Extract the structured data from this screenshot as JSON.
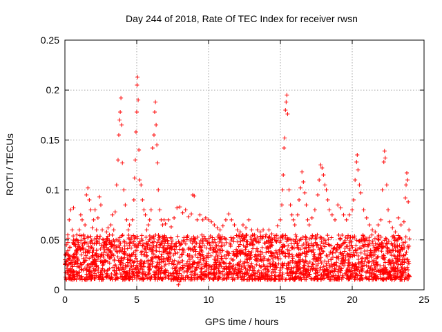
{
  "chart_data": {
    "type": "scatter",
    "title": "Day 244 of 2018, Rate Of TEC Index for receiver rwsn",
    "xlabel": "GPS time / hours",
    "ylabel": "ROTI / TECUs",
    "xlim": [
      0,
      25
    ],
    "ylim": [
      0,
      0.25
    ],
    "xticks": [
      0,
      5,
      10,
      15,
      20,
      25
    ],
    "yticks": [
      0,
      0.05,
      0.1,
      0.15,
      0.2,
      0.25
    ],
    "xtick_labels": [
      "0",
      "5",
      "10",
      "15",
      "20",
      "25"
    ],
    "ytick_labels": [
      "0",
      "0.05",
      "0.1",
      "0.15",
      "0.2",
      "0.25"
    ],
    "grid": true,
    "marker": "+",
    "color": "#ff0000",
    "series": [
      {
        "name": "ROTI",
        "points": [
          [
            0.0,
            0.03
          ],
          [
            0.1,
            0.045
          ],
          [
            0.2,
            0.055
          ],
          [
            0.3,
            0.07
          ],
          [
            0.4,
            0.08
          ],
          [
            0.5,
            0.06
          ],
          [
            0.6,
            0.082
          ],
          [
            0.7,
            0.05
          ],
          [
            0.8,
            0.04
          ],
          [
            0.9,
            0.03
          ],
          [
            1.0,
            0.06
          ],
          [
            1.1,
            0.075
          ],
          [
            1.2,
            0.07
          ],
          [
            1.3,
            0.055
          ],
          [
            1.4,
            0.065
          ],
          [
            1.5,
            0.095
          ],
          [
            1.6,
            0.102
          ],
          [
            1.7,
            0.09
          ],
          [
            1.8,
            0.08
          ],
          [
            1.9,
            0.062
          ],
          [
            2.0,
            0.07
          ],
          [
            2.1,
            0.08
          ],
          [
            2.2,
            0.06
          ],
          [
            2.3,
            0.072
          ],
          [
            2.4,
            0.093
          ],
          [
            2.5,
            0.085
          ],
          [
            2.6,
            0.06
          ],
          [
            2.7,
            0.05
          ],
          [
            2.8,
            0.045
          ],
          [
            2.9,
            0.058
          ],
          [
            3.0,
            0.062
          ],
          [
            3.1,
            0.055
          ],
          [
            3.2,
            0.065
          ],
          [
            3.3,
            0.075
          ],
          [
            3.4,
            0.06
          ],
          [
            3.5,
            0.078
          ],
          [
            3.6,
            0.105
          ],
          [
            3.7,
            0.13
          ],
          [
            3.75,
            0.155
          ],
          [
            3.8,
            0.17
          ],
          [
            3.85,
            0.178
          ],
          [
            3.9,
            0.192
          ],
          [
            3.95,
            0.165
          ],
          [
            4.0,
            0.127
          ],
          [
            4.1,
            0.1
          ],
          [
            4.2,
            0.085
          ],
          [
            4.3,
            0.07
          ],
          [
            4.4,
            0.06
          ],
          [
            4.5,
            0.065
          ],
          [
            4.6,
            0.05
          ],
          [
            4.7,
            0.07
          ],
          [
            4.8,
            0.09
          ],
          [
            4.85,
            0.112
          ],
          [
            4.9,
            0.13
          ],
          [
            4.95,
            0.158
          ],
          [
            5.0,
            0.178
          ],
          [
            5.02,
            0.205
          ],
          [
            5.05,
            0.213
          ],
          [
            5.1,
            0.19
          ],
          [
            5.15,
            0.14
          ],
          [
            5.2,
            0.11
          ],
          [
            5.3,
            0.105
          ],
          [
            5.4,
            0.09
          ],
          [
            5.5,
            0.08
          ],
          [
            5.6,
            0.075
          ],
          [
            5.7,
            0.06
          ],
          [
            5.8,
            0.065
          ],
          [
            5.9,
            0.07
          ],
          [
            6.0,
            0.08
          ],
          [
            6.1,
            0.142
          ],
          [
            6.2,
            0.155
          ],
          [
            6.25,
            0.178
          ],
          [
            6.3,
            0.188
          ],
          [
            6.35,
            0.165
          ],
          [
            6.4,
            0.145
          ],
          [
            6.45,
            0.127
          ],
          [
            6.5,
            0.1
          ],
          [
            6.6,
            0.08
          ],
          [
            6.7,
            0.07
          ],
          [
            6.8,
            0.065
          ],
          [
            6.9,
            0.07
          ],
          [
            7.0,
            0.066
          ],
          [
            7.2,
            0.07
          ],
          [
            7.4,
            0.063
          ],
          [
            7.6,
            0.072
          ],
          [
            7.8,
            0.082
          ],
          [
            8.0,
            0.083
          ],
          [
            8.2,
            0.077
          ],
          [
            8.4,
            0.08
          ],
          [
            8.6,
            0.073
          ],
          [
            8.8,
            0.076
          ],
          [
            8.9,
            0.095
          ],
          [
            9.0,
            0.094
          ],
          [
            9.2,
            0.07
          ],
          [
            9.4,
            0.075
          ],
          [
            9.6,
            0.07
          ],
          [
            9.8,
            0.072
          ],
          [
            10.0,
            0.07
          ],
          [
            10.2,
            0.068
          ],
          [
            10.4,
            0.065
          ],
          [
            10.6,
            0.062
          ],
          [
            10.8,
            0.06
          ],
          [
            11.0,
            0.064
          ],
          [
            11.2,
            0.07
          ],
          [
            11.4,
            0.076
          ],
          [
            11.6,
            0.07
          ],
          [
            11.8,
            0.065
          ],
          [
            12.0,
            0.06
          ],
          [
            12.2,
            0.058
          ],
          [
            12.4,
            0.065
          ],
          [
            12.6,
            0.062
          ],
          [
            12.8,
            0.07
          ],
          [
            13.0,
            0.06
          ],
          [
            13.2,
            0.055
          ],
          [
            13.4,
            0.06
          ],
          [
            13.6,
            0.058
          ],
          [
            13.8,
            0.06
          ],
          [
            14.0,
            0.055
          ],
          [
            14.2,
            0.06
          ],
          [
            14.4,
            0.056
          ],
          [
            14.6,
            0.052
          ],
          [
            14.8,
            0.064
          ],
          [
            15.0,
            0.07
          ],
          [
            15.1,
            0.085
          ],
          [
            15.15,
            0.1
          ],
          [
            15.2,
            0.115
          ],
          [
            15.25,
            0.142
          ],
          [
            15.3,
            0.152
          ],
          [
            15.35,
            0.18
          ],
          [
            15.4,
            0.188
          ],
          [
            15.45,
            0.195
          ],
          [
            15.5,
            0.176
          ],
          [
            15.6,
            0.1
          ],
          [
            15.7,
            0.085
          ],
          [
            15.8,
            0.075
          ],
          [
            15.9,
            0.07
          ],
          [
            16.0,
            0.065
          ],
          [
            16.2,
            0.075
          ],
          [
            16.3,
            0.09
          ],
          [
            16.4,
            0.102
          ],
          [
            16.5,
            0.118
          ],
          [
            16.6,
            0.108
          ],
          [
            16.7,
            0.097
          ],
          [
            16.8,
            0.085
          ],
          [
            16.9,
            0.07
          ],
          [
            17.0,
            0.065
          ],
          [
            17.2,
            0.072
          ],
          [
            17.4,
            0.08
          ],
          [
            17.6,
            0.095
          ],
          [
            17.7,
            0.11
          ],
          [
            17.8,
            0.125
          ],
          [
            17.9,
            0.122
          ],
          [
            18.0,
            0.115
          ],
          [
            18.1,
            0.105
          ],
          [
            18.2,
            0.1
          ],
          [
            18.3,
            0.09
          ],
          [
            18.4,
            0.08
          ],
          [
            18.6,
            0.075
          ],
          [
            18.8,
            0.07
          ],
          [
            19.0,
            0.085
          ],
          [
            19.2,
            0.082
          ],
          [
            19.4,
            0.075
          ],
          [
            19.6,
            0.07
          ],
          [
            19.8,
            0.075
          ],
          [
            20.0,
            0.08
          ],
          [
            20.1,
            0.09
          ],
          [
            20.2,
            0.11
          ],
          [
            20.3,
            0.128
          ],
          [
            20.35,
            0.135
          ],
          [
            20.4,
            0.12
          ],
          [
            20.5,
            0.105
          ],
          [
            20.6,
            0.097
          ],
          [
            20.8,
            0.08
          ],
          [
            21.0,
            0.072
          ],
          [
            21.2,
            0.065
          ],
          [
            21.4,
            0.06
          ],
          [
            21.6,
            0.058
          ],
          [
            21.8,
            0.065
          ],
          [
            22.0,
            0.07
          ],
          [
            22.1,
            0.1
          ],
          [
            22.2,
            0.128
          ],
          [
            22.25,
            0.139
          ],
          [
            22.3,
            0.132
          ],
          [
            22.4,
            0.105
          ],
          [
            22.5,
            0.08
          ],
          [
            22.6,
            0.068
          ],
          [
            22.8,
            0.062
          ],
          [
            23.0,
            0.058
          ],
          [
            23.2,
            0.072
          ],
          [
            23.4,
            0.065
          ],
          [
            23.6,
            0.068
          ],
          [
            23.7,
            0.092
          ],
          [
            23.75,
            0.105
          ],
          [
            23.8,
            0.117
          ],
          [
            23.85,
            0.11
          ],
          [
            23.9,
            0.088
          ],
          [
            23.95,
            0.06
          ],
          [
            0.3,
            0.02
          ],
          [
            0.8,
            0.015
          ],
          [
            1.2,
            0.01
          ],
          [
            1.8,
            0.018
          ],
          [
            2.4,
            0.012
          ],
          [
            3.0,
            0.02
          ],
          [
            3.5,
            0.014
          ],
          [
            4.0,
            0.022
          ],
          [
            4.5,
            0.016
          ],
          [
            5.0,
            0.011
          ],
          [
            5.5,
            0.018
          ],
          [
            6.0,
            0.013
          ],
          [
            6.5,
            0.02
          ],
          [
            7.0,
            0.012
          ],
          [
            7.5,
            0.016
          ],
          [
            7.9,
            0.005
          ],
          [
            8.0,
            0.008
          ],
          [
            8.5,
            0.014
          ],
          [
            9.0,
            0.012
          ],
          [
            9.5,
            0.018
          ],
          [
            10.0,
            0.016
          ],
          [
            10.5,
            0.012
          ],
          [
            11.0,
            0.015
          ],
          [
            11.5,
            0.018
          ],
          [
            12.0,
            0.014
          ],
          [
            12.5,
            0.017
          ],
          [
            13.0,
            0.015
          ],
          [
            13.5,
            0.019
          ],
          [
            14.0,
            0.016
          ],
          [
            14.5,
            0.018
          ],
          [
            15.0,
            0.014
          ],
          [
            15.5,
            0.017
          ],
          [
            16.0,
            0.012
          ],
          [
            16.5,
            0.018
          ],
          [
            17.0,
            0.015
          ],
          [
            17.5,
            0.019
          ],
          [
            18.0,
            0.014
          ],
          [
            18.5,
            0.017
          ],
          [
            19.0,
            0.012
          ],
          [
            19.5,
            0.016
          ],
          [
            20.0,
            0.014
          ],
          [
            20.5,
            0.018
          ],
          [
            21.0,
            0.012
          ],
          [
            21.5,
            0.016
          ],
          [
            22.0,
            0.011
          ],
          [
            22.5,
            0.015
          ],
          [
            23.0,
            0.012
          ],
          [
            23.5,
            0.016
          ],
          [
            23.9,
            0.013
          ]
        ]
      }
    ],
    "dense_band": {
      "note": "dense cloud of ROTI samples filling most of 0.01–0.05 across 0–24 h",
      "x_range": [
        0,
        24
      ],
      "y_range": [
        0.01,
        0.055
      ]
    }
  }
}
